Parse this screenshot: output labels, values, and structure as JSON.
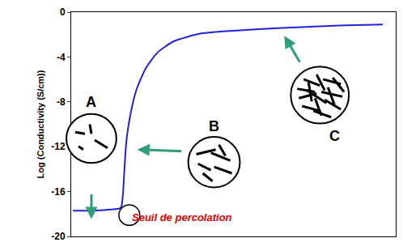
{
  "chart_data": {
    "type": "line",
    "y_label": "Log (Conductivity (S/cm))",
    "x": [
      0.5,
      5,
      10,
      14,
      15,
      15.5,
      16,
      16.5,
      17,
      18,
      20,
      23,
      26.6,
      31.6,
      40,
      52.7,
      65,
      82.6,
      96
    ],
    "values": [
      -17.7,
      -17.7,
      -17.65,
      -17.55,
      -17.5,
      -17.3,
      -16,
      -13.5,
      -11.5,
      -9.5,
      -7,
      -5,
      -3.6,
      -2.6,
      -1.9,
      -1.6,
      -1.4,
      -1.2,
      -1.1
    ],
    "color": "#2323d6",
    "xlim": [
      0,
      100
    ],
    "xticks": [],
    "ylim": [
      -20,
      0
    ],
    "yticks": [
      -20,
      -16,
      -12,
      -8,
      -4,
      0
    ],
    "tick_labels": "y",
    "grid": false,
    "annotations": [
      "A",
      "B",
      "C",
      "Seuil de percolation"
    ]
  }
}
